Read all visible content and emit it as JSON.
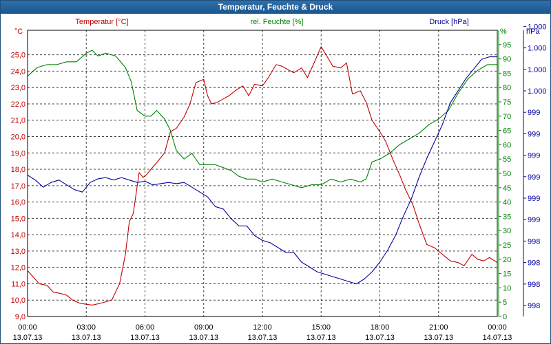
{
  "window": {
    "title": "Temperatur, Feuchte & Druck"
  },
  "colors": {
    "temperature": "#c00000",
    "humidity": "#008000",
    "pressure": "#00009c",
    "title_bar": "#2064a6"
  },
  "chart_data": {
    "type": "line",
    "title": "Temperatur, Feuchte & Druck",
    "grid": true,
    "x_ticks": [
      {
        "time": "00:00",
        "date": "13.07.13"
      },
      {
        "time": "03:00",
        "date": "13.07.13"
      },
      {
        "time": "06:00",
        "date": "13.07.13"
      },
      {
        "time": "09:00",
        "date": "13.07.13"
      },
      {
        "time": "12:00",
        "date": "13.07.13"
      },
      {
        "time": "15:00",
        "date": "13.07.13"
      },
      {
        "time": "18:00",
        "date": "13.07.13"
      },
      {
        "time": "21:00",
        "date": "13.07.13"
      },
      {
        "time": "00:00",
        "date": "14.07.13"
      }
    ],
    "x_range_hours": [
      0,
      24
    ],
    "axes": {
      "temperature": {
        "label": "Temperatur [°C]",
        "unit": "°C",
        "range": [
          9,
          26.5
        ],
        "ticks": [
          "9,0",
          "10,0",
          "11,0",
          "12,0",
          "13,0",
          "14,0",
          "15,0",
          "16,0",
          "17,0",
          "18,0",
          "19,0",
          "20,0",
          "21,0",
          "22,0",
          "23,0",
          "24,0",
          "25,0"
        ]
      },
      "humidity": {
        "label": "rel. Feuchte [%]",
        "unit": "%",
        "range": [
          0,
          100
        ],
        "ticks": [
          "0",
          "5",
          "10",
          "15",
          "20",
          "25",
          "30",
          "35",
          "40",
          "45",
          "50",
          "55",
          "60",
          "65",
          "70",
          "75",
          "80",
          "85",
          "90",
          "95"
        ]
      },
      "pressure": {
        "label": "Druck [hPa]",
        "unit": "hPa",
        "ticks": [
          "998",
          "998",
          "998",
          "998",
          "999",
          "999",
          "999",
          "999",
          "999",
          "999",
          "1.000",
          "1.000",
          "1.000",
          "1.000"
        ]
      }
    },
    "series": [
      {
        "name": "Temperatur [°C]",
        "axis": "temperature",
        "x": [
          0,
          0.3,
          0.6,
          1,
          1.3,
          1.7,
          2,
          2.3,
          2.7,
          3,
          3.3,
          3.7,
          4,
          4.3,
          4.7,
          5,
          5.2,
          5.4,
          5.7,
          5.9,
          6.1,
          6.3,
          6.6,
          7,
          7.3,
          7.6,
          8,
          8.3,
          8.6,
          9,
          9.2,
          9.4,
          9.7,
          10,
          10.3,
          10.6,
          11,
          11.3,
          11.6,
          12,
          12.3,
          12.7,
          13,
          13.3,
          13.6,
          14,
          14.3,
          14.6,
          15,
          15.3,
          15.6,
          16,
          16.3,
          16.6,
          17,
          17.3,
          17.6,
          18,
          18.3,
          18.7,
          19,
          19.3,
          19.7,
          20,
          20.4,
          20.8,
          21.2,
          21.6,
          22,
          22.3,
          22.7,
          23,
          23.3,
          23.6,
          24
        ],
        "values": [
          11.8,
          11.4,
          11.0,
          10.9,
          10.5,
          10.4,
          10.3,
          10.0,
          9.8,
          9.75,
          9.7,
          9.8,
          9.9,
          10.0,
          11.0,
          12.8,
          14.8,
          15.3,
          17.8,
          17.5,
          17.7,
          18.0,
          18.4,
          19.0,
          20.3,
          20.5,
          21.2,
          22.0,
          23.3,
          23.5,
          22.5,
          22.0,
          22.1,
          22.3,
          22.5,
          22.8,
          23.1,
          22.5,
          23.2,
          23.1,
          23.6,
          24.4,
          24.3,
          24.1,
          23.9,
          24.2,
          23.6,
          24.4,
          25.5,
          24.9,
          24.3,
          24.2,
          24.5,
          22.6,
          22.8,
          22.1,
          21.0,
          20.3,
          19.7,
          18.5,
          17.7,
          16.8,
          15.8,
          14.7,
          13.4,
          13.2,
          12.8,
          12.4,
          12.3,
          12.1,
          12.8,
          12.5,
          12.4,
          12.6,
          12.3
        ]
      },
      {
        "name": "rel. Feuchte [%]",
        "axis": "humidity",
        "x": [
          0,
          0.5,
          1,
          1.5,
          2,
          2.5,
          3,
          3.3,
          3.6,
          4,
          4.5,
          5,
          5.3,
          5.6,
          6,
          6.3,
          6.6,
          7,
          7.3,
          7.6,
          8,
          8.4,
          8.8,
          9.2,
          9.6,
          10,
          10.4,
          10.8,
          11.2,
          11.6,
          12,
          12.5,
          13,
          13.5,
          14,
          14.5,
          15,
          15.5,
          16,
          16.5,
          17,
          17.3,
          17.6,
          18,
          18.5,
          19,
          19.5,
          20,
          20.5,
          21,
          21.5,
          22,
          22.5,
          23,
          23.5,
          24
        ],
        "values": [
          84,
          87,
          88,
          88,
          89,
          89,
          92,
          93,
          91,
          92,
          91,
          87,
          82,
          72,
          70,
          70,
          72,
          69,
          65,
          58,
          55,
          57,
          53,
          53,
          53,
          52,
          51,
          49,
          48,
          48,
          47,
          48,
          47,
          46,
          45,
          46,
          46,
          48,
          47,
          48,
          47,
          48,
          54,
          55,
          57,
          60,
          62,
          64,
          67,
          69,
          72,
          78,
          83,
          86,
          88,
          88
        ]
      },
      {
        "name": "Druck [hPa]",
        "axis": "pressure",
        "x": [
          0,
          0.4,
          0.8,
          1.2,
          1.6,
          2,
          2.4,
          2.8,
          3.2,
          3.6,
          4,
          4.4,
          4.8,
          5.2,
          5.6,
          6,
          6.4,
          6.8,
          7.2,
          7.6,
          8,
          8.4,
          8.8,
          9.2,
          9.6,
          10,
          10.4,
          10.8,
          11.2,
          11.6,
          12,
          12.4,
          12.8,
          13.2,
          13.6,
          14,
          14.4,
          14.8,
          15.2,
          15.6,
          16,
          16.4,
          16.8,
          17.2,
          17.6,
          18,
          18.4,
          18.8,
          19.2,
          19.6,
          20,
          20.4,
          20.8,
          21.2,
          21.6,
          22,
          22.4,
          22.8,
          23.2,
          23.6,
          24
        ],
        "values": [
          998.92,
          998.88,
          998.82,
          998.86,
          998.88,
          998.84,
          998.8,
          998.78,
          998.86,
          998.89,
          998.9,
          998.88,
          998.9,
          998.88,
          998.86,
          998.87,
          998.84,
          998.85,
          998.86,
          998.85,
          998.86,
          998.82,
          998.78,
          998.74,
          998.66,
          998.64,
          998.56,
          998.5,
          998.5,
          998.42,
          998.38,
          998.36,
          998.32,
          998.28,
          998.28,
          998.2,
          998.16,
          998.12,
          998.1,
          998.08,
          998.06,
          998.04,
          998.02,
          998.06,
          998.12,
          998.2,
          998.3,
          998.42,
          998.58,
          998.72,
          998.9,
          999.06,
          999.2,
          999.34,
          999.52,
          999.62,
          999.72,
          999.8,
          999.88,
          999.9,
          999.9
        ]
      }
    ]
  }
}
